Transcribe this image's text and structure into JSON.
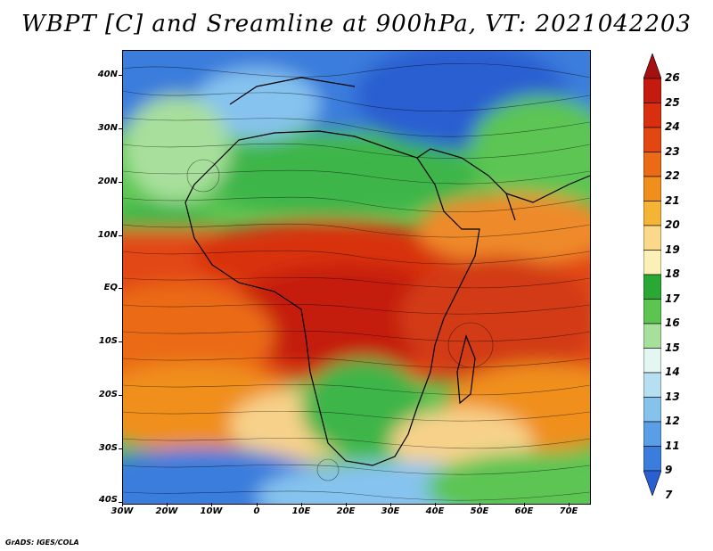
{
  "title": "WBPT [C] and Sreamline at 900hPa, VT: 2021042203",
  "credit": "GrADS: IGES/COLA",
  "lat_labels": [
    "40N",
    "30N",
    "20N",
    "10N",
    "EQ",
    "10S",
    "20S",
    "30S",
    "40S"
  ],
  "lon_labels": [
    "30W",
    "20W",
    "10W",
    "0",
    "10E",
    "20E",
    "30E",
    "40E",
    "50E",
    "60E",
    "70E"
  ],
  "colorbar": {
    "labels": [
      "26",
      "25",
      "24",
      "23",
      "22",
      "21",
      "20",
      "19",
      "18",
      "17",
      "16",
      "15",
      "14",
      "13",
      "12",
      "11",
      "9",
      "7"
    ],
    "colors": [
      "#a50f0f",
      "#c41b0e",
      "#d8300f",
      "#e24712",
      "#ea6a15",
      "#f08f1c",
      "#f5b436",
      "#fbd88a",
      "#fbf0b5",
      "#29a833",
      "#5cc552",
      "#a6e09a",
      "#e4f6f1",
      "#b6e0f1",
      "#85c2ec",
      "#5a9fe6",
      "#3b7ddc",
      "#2a5fd1"
    ]
  },
  "map_palette": {
    "ocean_cold": "#2e6ad6",
    "cool": "#86c3ee",
    "green": "#3cb54a",
    "light_green": "#a8df9c",
    "sand": "#f7d18a",
    "orange": "#ef8a2c",
    "hot": "#d23a16"
  }
}
